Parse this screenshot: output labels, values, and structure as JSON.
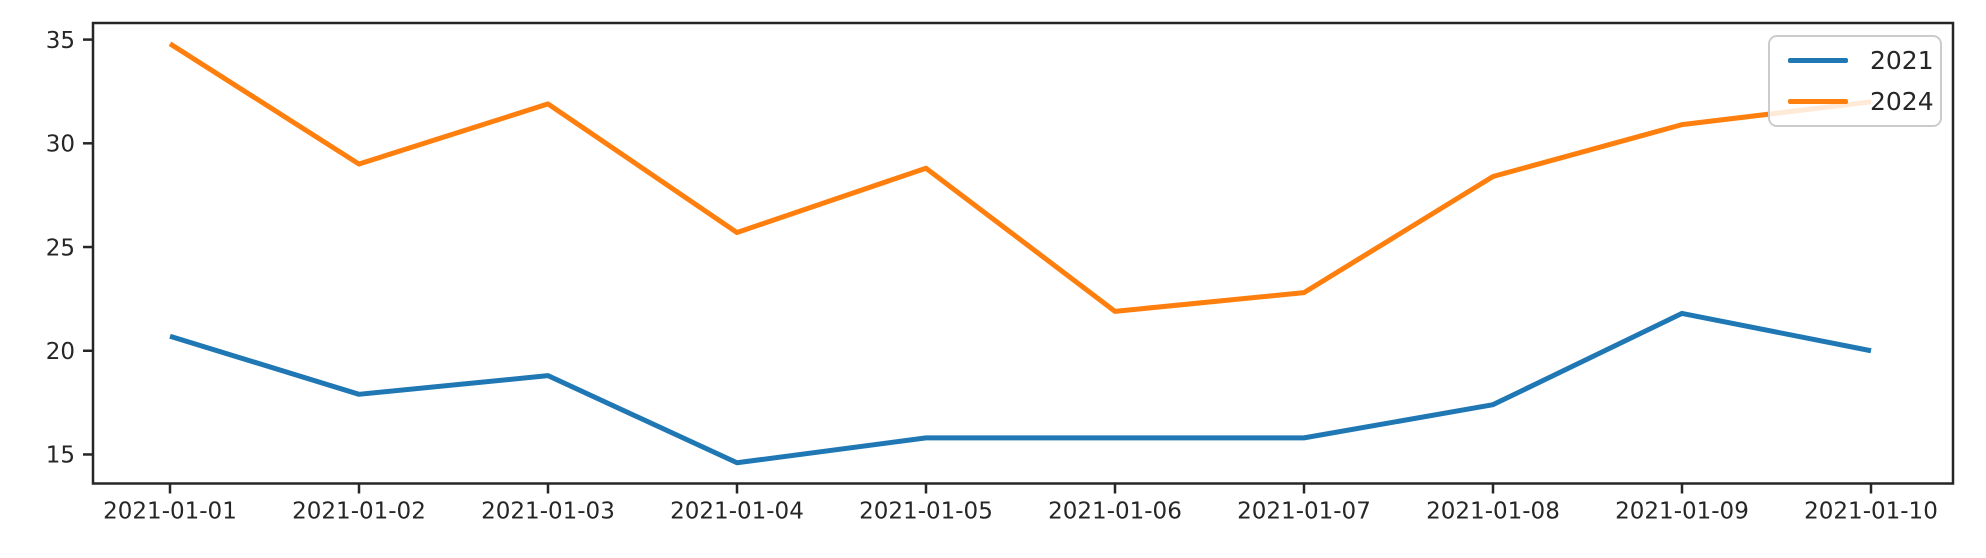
{
  "chart_data": {
    "type": "line",
    "title": "",
    "xlabel": "",
    "ylabel": "",
    "grid": false,
    "legend_position": "upper right",
    "categories": [
      "2021-01-01",
      "2021-01-02",
      "2021-01-03",
      "2021-01-04",
      "2021-01-05",
      "2021-01-06",
      "2021-01-07",
      "2021-01-08",
      "2021-01-09",
      "2021-01-10"
    ],
    "series": [
      {
        "name": "2021",
        "color": "#1f77b4",
        "values": [
          20.7,
          17.9,
          18.8,
          14.6,
          15.8,
          15.8,
          15.8,
          17.4,
          21.8,
          20.0
        ]
      },
      {
        "name": "2024",
        "color": "#ff7f0e",
        "values": [
          34.8,
          29.0,
          31.9,
          25.7,
          28.8,
          21.9,
          22.8,
          28.4,
          30.9,
          32.0
        ]
      }
    ],
    "yticks": [
      15,
      20,
      25,
      30,
      35
    ],
    "ylim": [
      13.6,
      35.8
    ],
    "axis_color": "#262626",
    "background_color": "#ffffff"
  }
}
